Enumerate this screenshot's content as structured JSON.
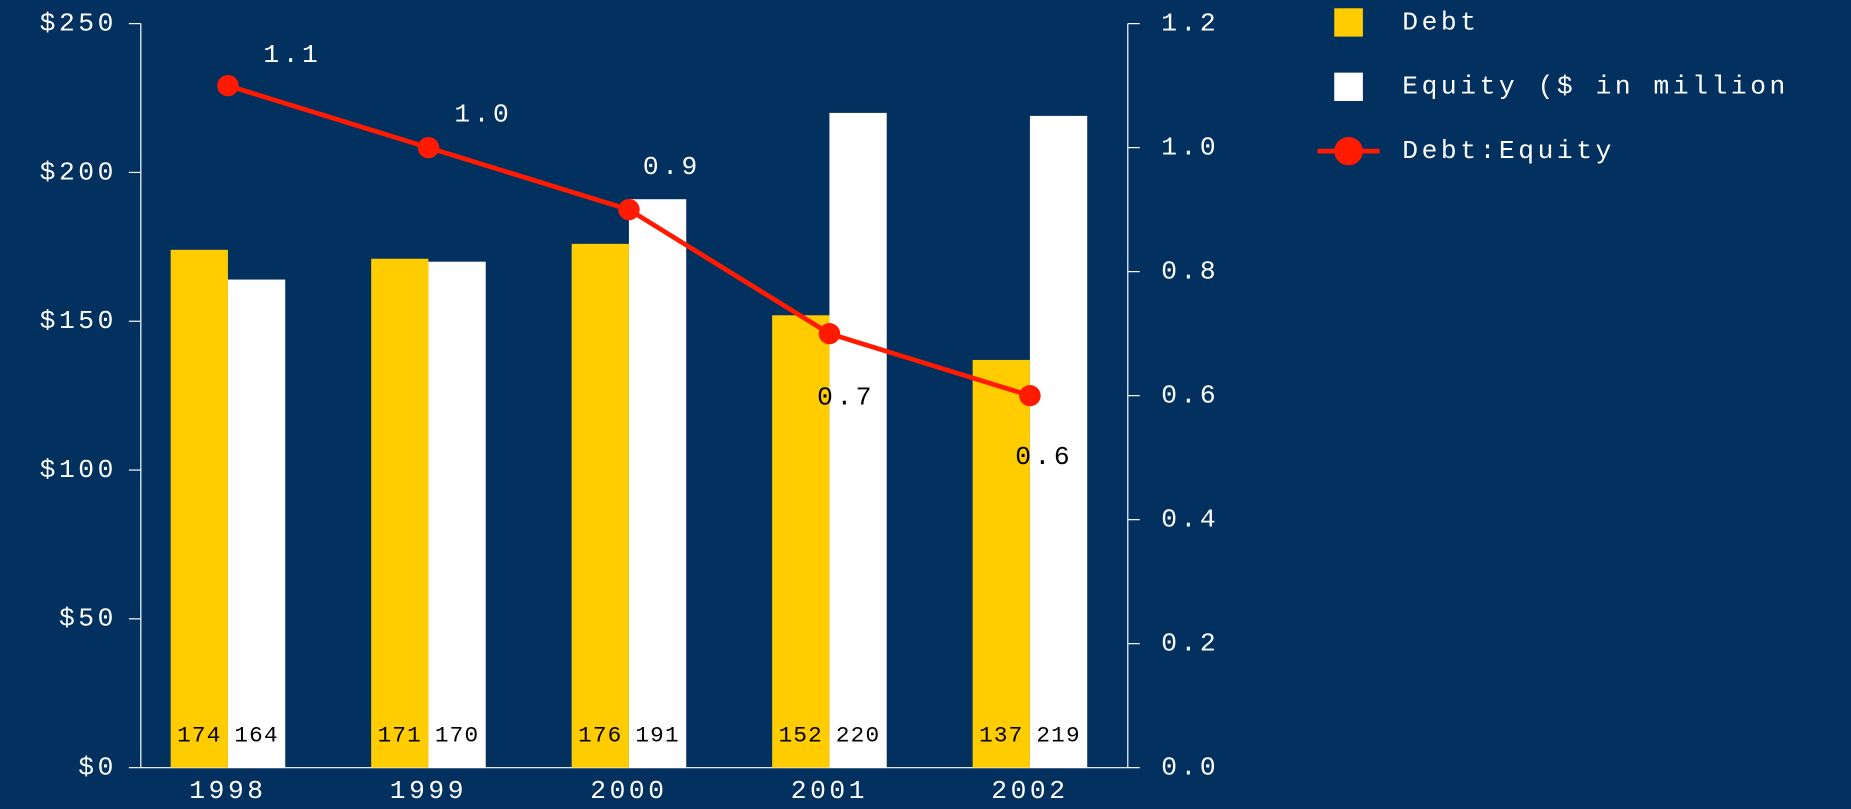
{
  "chart_data": {
    "type": "bar",
    "categories": [
      "1998",
      "1999",
      "2000",
      "2001",
      "2002"
    ],
    "series": [
      {
        "name": "Debt",
        "color": "#ffcc00",
        "values": [
          174,
          171,
          176,
          152,
          137
        ]
      },
      {
        "name": "Equity ($ in million",
        "color": "#ffffff",
        "values": [
          164,
          170,
          191,
          220,
          219
        ]
      },
      {
        "name": "Debt:Equity",
        "type": "line",
        "axis": "y2",
        "color": "#ff1a00",
        "values": [
          1.1,
          1.0,
          0.9,
          0.7,
          0.6
        ],
        "value_labels": [
          "1.1",
          "1.0",
          "0.9",
          "0.7",
          "0.6"
        ]
      }
    ],
    "ylim": [
      0,
      250
    ],
    "yticks": [
      {
        "value": 0,
        "label": "$0"
      },
      {
        "value": 50,
        "label": "$50"
      },
      {
        "value": 100,
        "label": "$100"
      },
      {
        "value": 150,
        "label": "$150"
      },
      {
        "value": 200,
        "label": "$200"
      },
      {
        "value": 250,
        "label": "$250"
      }
    ],
    "y2lim": [
      0,
      1.2
    ],
    "y2ticks": [
      {
        "value": 0,
        "label": "0.0"
      },
      0.2,
      0.4,
      0.6,
      0.8,
      {
        "value": 1,
        "label": "1.0"
      },
      1.2
    ],
    "legend": "right",
    "grid": false
  }
}
